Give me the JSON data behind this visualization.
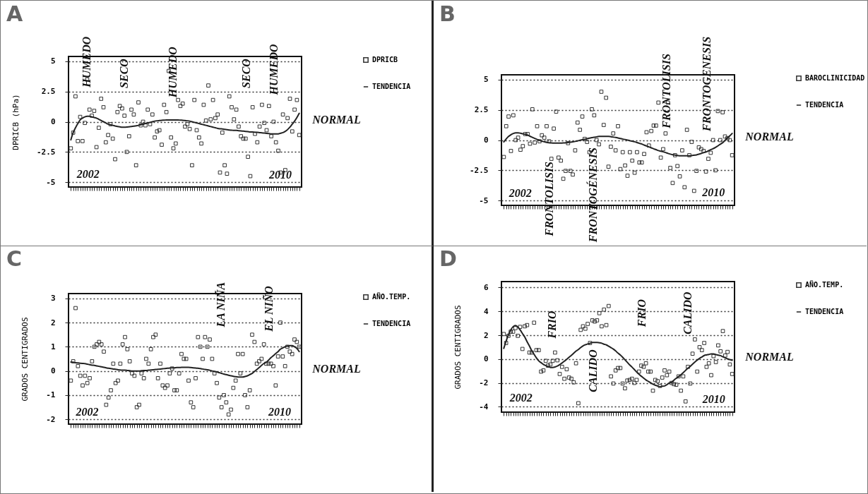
{
  "chart_data": [
    {
      "type": "scatter",
      "title": "A",
      "ylabel": "DPRICB (hPa)",
      "ylim": [
        -5.4,
        5.4
      ],
      "yticks": [
        -5,
        -2.5,
        0,
        2.5,
        5
      ],
      "grid": "y",
      "legend": "top right",
      "line_style": "solid",
      "annotations": [
        "HUMEDO",
        "SECO",
        "HUMEDO",
        "SECO",
        "HUMEDO",
        "NORMAL",
        "2002",
        "2010"
      ],
      "categories": [
        null,
        null,
        null,
        null,
        null,
        null,
        null,
        null,
        null,
        null,
        null,
        null,
        null,
        null,
        null,
        null,
        null,
        null,
        null,
        null,
        null,
        null,
        null,
        null,
        null,
        null,
        null,
        null,
        null,
        null,
        null,
        null,
        null,
        null,
        null,
        null,
        null,
        null,
        null,
        null,
        null,
        null,
        null,
        null,
        null,
        null,
        null,
        null,
        null,
        null,
        null,
        null,
        null,
        null,
        null,
        null,
        null,
        null,
        null,
        null,
        null,
        null,
        null,
        null,
        null,
        null,
        null,
        null,
        null,
        null,
        null,
        null,
        null,
        null,
        null,
        null,
        null,
        null,
        null,
        null,
        null,
        null,
        null,
        null,
        null,
        null,
        null,
        null,
        null,
        null,
        null,
        null,
        null,
        null,
        null,
        null,
        null,
        null,
        null
      ],
      "series": [
        {
          "name": "DPRICB",
          "type": "scatter",
          "marker": "square",
          "color": "#333333",
          "values": [
            -2.2,
            -0.9,
            2.1,
            -1.6,
            0.4,
            -1.6,
            -0.1,
            3.5,
            1.0,
            0.5,
            0.9,
            -2.1,
            -0.5,
            1.9,
            1.2,
            -1.7,
            -1.1,
            -0.2,
            -1.4,
            -3.1,
            0.8,
            1.3,
            1.1,
            0.5,
            -2.5,
            -1.2,
            1.0,
            0.6,
            -3.6,
            1.6,
            -0.3,
            0.0,
            -0.3,
            1.0,
            -0.2,
            0.6,
            -1.3,
            -0.8,
            -0.7,
            -1.9,
            1.4,
            0.8,
            4.2,
            -1.3,
            -2.2,
            -1.8,
            1.8,
            1.3,
            1.5,
            -0.4,
            -0.2,
            -0.6,
            -3.6,
            1.8,
            -0.7,
            -1.3,
            -1.8,
            1.4,
            0.1,
            3.0,
            0.2,
            1.8,
            0.3,
            0.6,
            -4.2,
            -0.9,
            -3.6,
            -4.3,
            2.1,
            1.2,
            0.2,
            1.0,
            -0.4,
            -1.2,
            -1.4,
            -1.4,
            -2.9,
            -4.5,
            1.2,
            -1.0,
            -1.7,
            -0.4,
            1.4,
            -0.1,
            -0.7,
            1.3,
            -1.2,
            0.0,
            -1.7,
            -2.4,
            -4.2,
            0.6,
            -4.0,
            0.3,
            1.9,
            -0.8,
            1.0,
            1.8,
            -1.1
          ]
        },
        {
          "name": "TENDENCIA",
          "type": "line",
          "color": "#222222",
          "values": [
            -1.5,
            -0.9,
            -0.5,
            -0.15,
            0.15,
            0.3,
            0.4,
            0.45,
            0.45,
            0.4,
            0.35,
            0.3,
            0.2,
            0.1,
            0.0,
            -0.1,
            -0.2,
            -0.25,
            -0.3,
            -0.35,
            -0.4,
            -0.42,
            -0.45,
            -0.45,
            -0.44,
            -0.42,
            -0.4,
            -0.37,
            -0.33,
            -0.3,
            -0.25,
            -0.2,
            -0.15,
            -0.1,
            -0.05,
            0.0,
            0.05,
            0.08,
            0.1,
            0.12,
            0.13,
            0.15,
            0.15,
            0.15,
            0.15,
            0.15,
            0.15,
            0.13,
            0.12,
            0.1,
            0.08,
            0.05,
            0.0,
            -0.05,
            -0.1,
            -0.15,
            -0.2,
            -0.25,
            -0.3,
            -0.35,
            -0.4,
            -0.45,
            -0.5,
            -0.55,
            -0.58,
            -0.6,
            -0.63,
            -0.65,
            -0.68,
            -0.7,
            -0.72,
            -0.72,
            -0.74,
            -0.76,
            -0.78,
            -0.8,
            -0.82,
            -0.84,
            -0.85,
            -0.87,
            -0.88,
            -0.9,
            -0.92,
            -0.94,
            -0.96,
            -0.98,
            -1.0,
            -1.0,
            -1.0,
            -1.0,
            -0.95,
            -0.9,
            -0.8,
            -0.65,
            -0.45,
            -0.2,
            0.05,
            0.35,
            0.7
          ]
        }
      ]
    },
    {
      "type": "scatter",
      "title": "B",
      "ylim": [
        -5.4,
        5.4
      ],
      "yticks": [
        -5,
        -2.5,
        0,
        2.5,
        5
      ],
      "grid": "y",
      "legend": "top right",
      "line_style": "solid",
      "annotations": [
        "FRONTOLISIS",
        "FRONTOGÉNESIS",
        "FRONTOLISIS",
        "FRONTOGENESIS",
        "NORMAL",
        "2002",
        "2010"
      ],
      "categories": [
        null,
        null,
        null,
        null,
        null,
        null,
        null,
        null,
        null,
        null,
        null,
        null,
        null,
        null,
        null,
        null,
        null,
        null,
        null,
        null,
        null,
        null,
        null,
        null,
        null,
        null,
        null,
        null,
        null,
        null,
        null,
        null,
        null,
        null,
        null,
        null,
        null,
        null,
        null,
        null,
        null,
        null,
        null,
        null,
        null,
        null,
        null,
        null,
        null,
        null,
        null,
        null,
        null,
        null,
        null,
        null,
        null,
        null,
        null,
        null,
        null,
        null,
        null,
        null,
        null,
        null,
        null,
        null,
        null,
        null,
        null,
        null,
        null,
        null,
        null,
        null,
        null,
        null,
        null,
        null,
        null,
        null,
        null,
        null,
        null,
        null,
        null,
        null,
        null,
        null,
        null,
        null,
        null,
        null,
        null,
        null,
        null
      ],
      "series": [
        {
          "name": "BAROCLINICIDAD",
          "type": "scatter",
          "marker": "square",
          "color": "#333333",
          "values": [
            -1.4,
            1.15,
            1.95,
            -0.9,
            2.05,
            0.0,
            0.2,
            -0.8,
            -0.5,
            0.5,
            0.5,
            -0.3,
            2.55,
            -0.2,
            1.15,
            -0.1,
            0.4,
            0.2,
            1.15,
            -0.1,
            -1.55,
            0.95,
            2.35,
            -1.45,
            -1.7,
            -3.2,
            -2.55,
            -0.25,
            -2.55,
            -2.85,
            -0.85,
            1.45,
            0.85,
            1.95,
            0.1,
            -0.15,
            -1.0,
            2.55,
            2.05,
            0.0,
            -0.35,
            4.0,
            1.25,
            3.5,
            -2.2,
            -0.55,
            0.55,
            -0.85,
            1.15,
            -2.4,
            -1.0,
            -2.1,
            -2.95,
            -1.0,
            -1.7,
            -2.7,
            -1.0,
            -1.85,
            -1.85,
            -1.15,
            0.65,
            -0.45,
            0.75,
            1.2,
            1.2,
            3.1,
            -1.45,
            -0.75,
            0.55,
            3.1,
            -2.3,
            -3.55,
            -1.25,
            -2.15,
            -3.0,
            -0.85,
            -3.9,
            0.85,
            -1.25,
            -0.15,
            -4.2,
            -2.55,
            -0.6,
            -0.75,
            -0.9,
            -2.6,
            -1.55,
            -1.05,
            0.0,
            -2.5,
            2.4,
            0.0,
            2.3,
            0.3,
            0.15,
            0.0,
            -1.25
          ]
        },
        {
          "name": "TENDENCIA",
          "type": "line",
          "color": "#222222",
          "values": [
            -0.15,
            0.1,
            0.3,
            0.45,
            0.55,
            0.6,
            0.6,
            0.57,
            0.52,
            0.48,
            0.42,
            0.32,
            0.23,
            0.14,
            0.05,
            -0.02,
            -0.09,
            -0.14,
            -0.19,
            -0.22,
            -0.24,
            -0.25,
            -0.25,
            -0.25,
            -0.25,
            -0.24,
            -0.22,
            -0.2,
            -0.17,
            -0.14,
            -0.11,
            -0.07,
            -0.02,
            0.03,
            0.07,
            0.12,
            0.16,
            0.2,
            0.23,
            0.27,
            0.3,
            0.3,
            0.3,
            0.3,
            0.3,
            0.28,
            0.25,
            0.22,
            0.18,
            0.13,
            0.08,
            0.05,
            0.0,
            -0.05,
            -0.09,
            -0.14,
            -0.2,
            -0.27,
            -0.33,
            -0.41,
            -0.49,
            -0.56,
            -0.64,
            -0.72,
            -0.79,
            -0.87,
            -0.92,
            -0.97,
            -1.03,
            -1.1,
            -1.16,
            -1.21,
            -1.24,
            -1.27,
            -1.3,
            -1.3,
            -1.3,
            -1.3,
            -1.3,
            -1.28,
            -1.25,
            -1.22,
            -1.17,
            -1.11,
            -1.04,
            -0.98,
            -0.89,
            -0.8,
            -0.71,
            -0.6,
            -0.48,
            -0.34,
            -0.22,
            -0.02,
            0.18,
            0.35,
            0.55
          ]
        }
      ]
    },
    {
      "type": "scatter",
      "title": "C",
      "ylabel": "GRADOS CENTIGRADOS",
      "ylim": [
        -2.2,
        3.2
      ],
      "yticks": [
        -2,
        -1,
        0,
        1,
        2,
        3
      ],
      "grid": "y",
      "legend": "top right",
      "line_style": "solid",
      "annotations": [
        "LA NIÑA",
        "EL NIÑO",
        "NORMAL",
        "2002",
        "2010"
      ],
      "categories": [
        null,
        null,
        null,
        null,
        null,
        null,
        null,
        null,
        null,
        null,
        null,
        null,
        null,
        null,
        null,
        null,
        null,
        null,
        null,
        null,
        null,
        null,
        null,
        null,
        null,
        null,
        null,
        null,
        null,
        null,
        null,
        null,
        null,
        null,
        null,
        null,
        null,
        null,
        null,
        null,
        null,
        null,
        null,
        null,
        null,
        null,
        null,
        null,
        null,
        null,
        null,
        null,
        null,
        null,
        null,
        null,
        null,
        null,
        null,
        null,
        null,
        null,
        null,
        null,
        null,
        null,
        null,
        null,
        null,
        null,
        null,
        null,
        null,
        null,
        null,
        null,
        null,
        null,
        null,
        null,
        null,
        null,
        null,
        null,
        null,
        null,
        null,
        null,
        null,
        null,
        null,
        null,
        null,
        null,
        null,
        null,
        null,
        null
      ],
      "series": [
        {
          "name": "AÑO.TEMP.",
          "type": "scatter",
          "marker": "square",
          "color": "#333333",
          "values": [
            -0.4,
            0.4,
            2.6,
            0.2,
            -0.2,
            -0.6,
            -0.2,
            -0.5,
            -0.3,
            0.4,
            1.0,
            1.1,
            1.2,
            1.1,
            0.8,
            -1.4,
            -1.1,
            -0.8,
            0.3,
            -0.5,
            -0.4,
            0.3,
            1.1,
            1.4,
            0.9,
            0.4,
            -0.1,
            -0.2,
            -1.5,
            -1.4,
            -0.1,
            -0.3,
            0.5,
            0.3,
            0.9,
            1.4,
            1.5,
            -0.3,
            0.3,
            -0.6,
            -0.7,
            -0.6,
            -0.1,
            0.1,
            -0.8,
            -0.8,
            -0.1,
            0.7,
            0.5,
            0.5,
            -0.4,
            -1.3,
            -1.5,
            -0.3,
            1.4,
            1.0,
            0.5,
            1.4,
            1.0,
            1.3,
            0.5,
            -0.1,
            -0.5,
            -1.1,
            -1.5,
            -1.0,
            -1.3,
            -1.8,
            -1.6,
            -0.7,
            -0.4,
            0.7,
            -0.1,
            0.7,
            -1.0,
            -1.5,
            -0.8,
            1.5,
            1.2,
            0.3,
            0.4,
            0.5,
            1.1,
            0.3,
            0.3,
            0.3,
            0.2,
            -0.6,
            0.6,
            2.0,
            0.6,
            0.2,
            1.0,
            0.8,
            0.7,
            1.3,
            1.2,
            1.0
          ]
        },
        {
          "name": "TENDENCIA",
          "type": "line",
          "color": "#222222",
          "values": [
            0.37,
            0.36,
            0.34,
            0.33,
            0.32,
            0.31,
            0.3,
            0.28,
            0.26,
            0.24,
            0.23,
            0.21,
            0.19,
            0.17,
            0.15,
            0.13,
            0.11,
            0.1,
            0.08,
            0.07,
            0.05,
            0.04,
            0.03,
            0.03,
            0.02,
            0.01,
            0.0,
            0.0,
            0.0,
            0.0,
            0.01,
            0.02,
            0.02,
            0.03,
            0.04,
            0.05,
            0.06,
            0.07,
            0.08,
            0.09,
            0.1,
            0.11,
            0.12,
            0.13,
            0.13,
            0.14,
            0.14,
            0.15,
            0.15,
            0.15,
            0.15,
            0.14,
            0.13,
            0.12,
            0.11,
            0.1,
            0.08,
            0.06,
            0.05,
            0.03,
            0.0,
            -0.02,
            -0.04,
            -0.07,
            -0.1,
            -0.13,
            -0.15,
            -0.18,
            -0.2,
            -0.22,
            -0.24,
            -0.25,
            -0.25,
            -0.25,
            -0.23,
            -0.2,
            -0.15,
            -0.1,
            -0.02,
            0.06,
            0.14,
            0.23,
            0.31,
            0.36,
            0.45,
            0.55,
            0.63,
            0.72,
            0.8,
            0.9,
            0.95,
            1.0,
            1.03,
            1.05,
            1.05,
            1.0,
            0.93,
            0.8
          ]
        }
      ]
    },
    {
      "type": "scatter",
      "title": "D",
      "ylabel": "GRADOS CENTIGRADOS",
      "ylim": [
        -4.45,
        6.5
      ],
      "yticks": [
        -4,
        -2,
        0,
        2,
        4,
        6
      ],
      "grid": "y",
      "legend": "top right",
      "line_style": "solid",
      "annotations": [
        "FRIO",
        "CALIDO",
        "FRIO",
        "CALIDO",
        "NORMAL",
        "2002",
        "2010"
      ],
      "categories": [
        null,
        null,
        null,
        null,
        null,
        null,
        null,
        null,
        null,
        null,
        null,
        null,
        null,
        null,
        null,
        null,
        null,
        null,
        null,
        null,
        null,
        null,
        null,
        null,
        null,
        null,
        null,
        null,
        null,
        null,
        null,
        null,
        null,
        null,
        null,
        null,
        null,
        null,
        null,
        null,
        null,
        null,
        null,
        null,
        null,
        null,
        null,
        null,
        null,
        null,
        null,
        null,
        null,
        null,
        null,
        null,
        null,
        null,
        null,
        null,
        null,
        null,
        null,
        null,
        null,
        null,
        null,
        null,
        null,
        null,
        null,
        null,
        null,
        null,
        null,
        null,
        null,
        null,
        null,
        null,
        null,
        null,
        null,
        null,
        null,
        null,
        null,
        null,
        null,
        null,
        null,
        null,
        null,
        null,
        null,
        null,
        null,
        null,
        null
      ],
      "series": [
        {
          "name": "AÑO.TEMP.",
          "type": "scatter",
          "marker": "square",
          "color": "#333333",
          "values": [
            2.1,
            1.35,
            1.95,
            2.3,
            2.3,
            2.6,
            1.95,
            2.7,
            0.85,
            2.75,
            2.85,
            0.55,
            0.55,
            3.05,
            0.75,
            0.75,
            -1.05,
            -0.95,
            -0.15,
            -0.55,
            -0.45,
            -0.15,
            0.55,
            -0.1,
            -1.25,
            -0.65,
            -1.65,
            -0.85,
            -1.55,
            -1.65,
            -1.95,
            -0.35,
            -3.7,
            2.45,
            2.75,
            2.55,
            2.95,
            1.35,
            3.25,
            3.15,
            3.25,
            3.85,
            2.75,
            4.15,
            2.85,
            4.45,
            -1.45,
            -2.05,
            -0.95,
            -0.75,
            -0.75,
            -2.05,
            -2.45,
            -1.8,
            -1.75,
            -1.65,
            -2.0,
            -1.75,
            -1.05,
            -0.55,
            -0.65,
            -0.35,
            -1.05,
            -1.05,
            -2.65,
            -1.75,
            -1.85,
            -2.25,
            -1.55,
            -0.95,
            -1.35,
            -1.05,
            -2.0,
            -2.1,
            -2.15,
            -1.45,
            -2.65,
            -1.45,
            -3.55,
            -0.65,
            -2.05,
            0.45,
            1.65,
            -1.05,
            1.0,
            0.75,
            1.35,
            -0.65,
            -0.35,
            -1.35,
            0.25,
            -0.25,
            1.15,
            0.65,
            2.35,
            0.3,
            0.6,
            -0.45,
            -1.25
          ]
        },
        {
          "name": "TENDENCIA",
          "type": "line",
          "color": "#222222",
          "values": [
            0.9,
            1.5,
            2.05,
            2.45,
            2.72,
            2.82,
            2.7,
            2.45,
            2.15,
            1.85,
            1.45,
            1.1,
            0.7,
            0.4,
            0.1,
            -0.15,
            -0.3,
            -0.45,
            -0.55,
            -0.63,
            -0.7,
            -0.7,
            -0.66,
            -0.58,
            -0.46,
            -0.33,
            -0.17,
            -0.02,
            0.15,
            0.31,
            0.49,
            0.67,
            0.8,
            0.97,
            1.11,
            1.2,
            1.27,
            1.33,
            1.39,
            1.4,
            1.4,
            1.37,
            1.33,
            1.25,
            1.19,
            1.08,
            0.96,
            0.84,
            0.68,
            0.5,
            0.34,
            0.15,
            -0.06,
            -0.27,
            -0.48,
            -0.67,
            -0.87,
            -1.08,
            -1.27,
            -1.44,
            -1.59,
            -1.75,
            -1.87,
            -1.99,
            -2.11,
            -2.19,
            -2.26,
            -2.3,
            -2.28,
            -2.25,
            -2.14,
            -2.0,
            -1.94,
            -1.77,
            -1.61,
            -1.47,
            -1.31,
            -1.13,
            -0.95,
            -0.77,
            -0.61,
            -0.43,
            -0.25,
            -0.09,
            0.06,
            0.18,
            0.3,
            0.35,
            0.39,
            0.44,
            0.43,
            0.38,
            0.33,
            0.29,
            0.19,
            0.11,
            0.02,
            -0.04,
            -0.1
          ]
        }
      ]
    }
  ]
}
